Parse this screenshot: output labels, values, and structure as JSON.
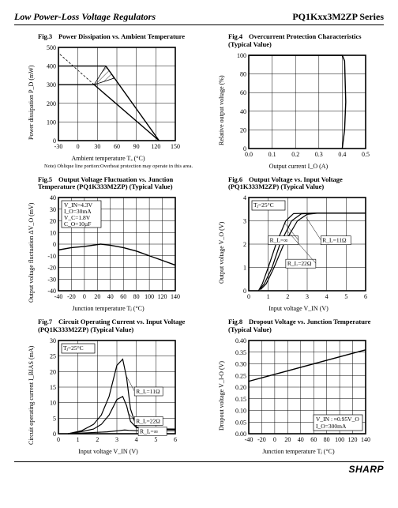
{
  "header": {
    "left": "Low Power-Loss Voltage Regulators",
    "right": "PQ1Kxx3M2ZP Series"
  },
  "footer": {
    "brand": "SHARP"
  },
  "fig3": {
    "figno": "Fig.3",
    "title": "Power Dissipation vs. Ambient Temperature",
    "xlabel": "Ambient temperature Tₐ (°C)",
    "ylabel": "Power dissipation P_D (mW)",
    "xlim": [
      -30,
      150
    ],
    "xtick_step": 30,
    "ylim": [
      0,
      500
    ],
    "ytick_step": 100,
    "grid_color": "#000000",
    "background_color": "#ffffff",
    "line_width": 1.4,
    "curve_upper": [
      [
        -30,
        400
      ],
      [
        43,
        400
      ],
      [
        125,
        0
      ]
    ],
    "curve_lower": [
      [
        -30,
        300
      ],
      [
        25,
        300
      ],
      [
        125,
        0
      ]
    ],
    "hatch_poly": [
      [
        43,
        400
      ],
      [
        56,
        335
      ],
      [
        25,
        300
      ],
      [
        43,
        400
      ]
    ],
    "note": "Note) Oblique line portion:Overheat protection may operate in this area."
  },
  "fig4": {
    "figno": "Fig.4",
    "title": "Overcurrent Protection Characteristics (Typical Value)",
    "xlabel": "Output current I_O (A)",
    "ylabel": "Relative output voltage (%)",
    "xlim": [
      0,
      0.5
    ],
    "xtick_step": 0.1,
    "ylim": [
      0,
      100
    ],
    "ytick_step": 20,
    "grid_color": "#000000",
    "line_width": 1.4,
    "curve": [
      [
        0,
        100
      ],
      [
        0.4,
        100
      ],
      [
        0.41,
        94
      ],
      [
        0.415,
        50
      ],
      [
        0.41,
        20
      ],
      [
        0.4,
        0
      ]
    ]
  },
  "fig5": {
    "figno": "Fig.5",
    "title": "Output Voltage Fluctuation vs. Junction Temperature (PQ1K333M2ZP) (Typical Value)",
    "xlabel": "Junction temperature Tⱼ (°C)",
    "ylabel": "Output voltage fluctuation ΔV_O (mV)",
    "xlim": [
      -40,
      140
    ],
    "xtick_step": 20,
    "ylim": [
      -40,
      40
    ],
    "ytick_step": 10,
    "grid_color": "#000000",
    "line_width": 1.4,
    "curve": [
      [
        -40,
        -5
      ],
      [
        -20,
        -3
      ],
      [
        0,
        -2
      ],
      [
        25,
        0
      ],
      [
        40,
        -1
      ],
      [
        60,
        -3
      ],
      [
        80,
        -6
      ],
      [
        100,
        -10
      ],
      [
        120,
        -14
      ],
      [
        140,
        -18
      ]
    ],
    "annot_box": [
      "V_IN=4.3V",
      "I_O=30mA",
      "V_C=1.8V",
      "C_O=10µF"
    ]
  },
  "fig6": {
    "figno": "Fig.6",
    "title": "Output Voltage vs. Input Voltage (PQ1K333M2ZP) (Typical Value)",
    "xlabel": "Input voltage V_IN (V)",
    "ylabel": "Output voltage V_O (V)",
    "xlim": [
      0,
      6
    ],
    "xtick_step": 1,
    "ylim": [
      0,
      4
    ],
    "ytick_step": 1,
    "grid_color": "#000000",
    "line_width": 1.2,
    "curves": {
      "R11": [
        [
          0.6,
          0.05
        ],
        [
          0.9,
          0.3
        ],
        [
          1.3,
          1.0
        ],
        [
          1.8,
          2.0
        ],
        [
          2.5,
          3.0
        ],
        [
          3.0,
          3.28
        ],
        [
          3.55,
          3.33
        ],
        [
          6,
          3.33
        ]
      ],
      "R22": [
        [
          0.55,
          0.05
        ],
        [
          0.8,
          0.3
        ],
        [
          1.2,
          1.0
        ],
        [
          1.6,
          2.0
        ],
        [
          2.2,
          3.0
        ],
        [
          2.7,
          3.3
        ],
        [
          3.45,
          3.33
        ],
        [
          6,
          3.33
        ]
      ],
      "Rinf": [
        [
          0.5,
          0
        ],
        [
          0.7,
          0.3
        ],
        [
          1.0,
          1.0
        ],
        [
          1.4,
          2.0
        ],
        [
          1.9,
          3.0
        ],
        [
          2.3,
          3.31
        ],
        [
          3.35,
          3.33
        ],
        [
          6,
          3.33
        ]
      ]
    },
    "annot_tj": "Tⱼ=25°C",
    "annot_r11": "R_L=11Ω",
    "annot_r22": "R_L=22Ω",
    "annot_rinf": "R_L=∞"
  },
  "fig7": {
    "figno": "Fig.7",
    "title": "Circuit Operating Current vs. Input Voltage (PQ1K333M2ZP) (Typical Value)",
    "xlabel": "Input voltage V_IN (V)",
    "ylabel": "Circuit operating current I_BIAS (mA)",
    "xlim": [
      0,
      6
    ],
    "xtick_step": 1,
    "ylim": [
      0,
      30
    ],
    "ytick_step": 5,
    "grid_color": "#000000",
    "line_width": 1.2,
    "curves": {
      "R11": [
        [
          0.5,
          0
        ],
        [
          1.2,
          1
        ],
        [
          1.8,
          3
        ],
        [
          2.2,
          6
        ],
        [
          2.6,
          12
        ],
        [
          3.0,
          22
        ],
        [
          3.3,
          24
        ],
        [
          3.5,
          18
        ],
        [
          3.7,
          8
        ],
        [
          4.0,
          2.2
        ],
        [
          4.5,
          1.6
        ],
        [
          6,
          1.5
        ]
      ],
      "R22": [
        [
          0.5,
          0
        ],
        [
          1.2,
          0.7
        ],
        [
          1.8,
          1.5
        ],
        [
          2.2,
          3
        ],
        [
          2.6,
          6
        ],
        [
          3.0,
          11
        ],
        [
          3.3,
          12
        ],
        [
          3.5,
          9
        ],
        [
          3.7,
          4
        ],
        [
          4.0,
          2.0
        ],
        [
          4.5,
          1.5
        ],
        [
          6,
          1.4
        ]
      ],
      "Rinf": [
        [
          0.5,
          0
        ],
        [
          1.5,
          0.3
        ],
        [
          2.5,
          0.6
        ],
        [
          3.1,
          1.0
        ],
        [
          3.4,
          1.2
        ],
        [
          3.6,
          1.1
        ],
        [
          4.0,
          1.0
        ],
        [
          6,
          1.0
        ]
      ]
    },
    "annot_tj": "Tⱼ=25°C",
    "annot_r11": "R_L=11Ω",
    "annot_r22": "R_L=22Ω",
    "annot_rinf": "R_L=∞"
  },
  "fig8": {
    "figno": "Fig.8",
    "title": "Dropout Voltage vs. Junction Temperature (Typical Value)",
    "xlabel": "Junction temperature Tⱼ (°C)",
    "ylabel": "Dropout voltage V_I-O (V)",
    "xlim": [
      -40,
      140
    ],
    "xtick_step": 20,
    "ylim": [
      0,
      0.4
    ],
    "ytick_step": 0.05,
    "grid_color": "#000000",
    "line_width": 1.4,
    "curve": [
      [
        -40,
        0.225
      ],
      [
        0,
        0.255
      ],
      [
        40,
        0.285
      ],
      [
        80,
        0.315
      ],
      [
        120,
        0.345
      ],
      [
        140,
        0.36
      ]
    ],
    "annot_box": [
      "V_IN : ≈0.95V_O",
      "I_O=300mA"
    ]
  }
}
